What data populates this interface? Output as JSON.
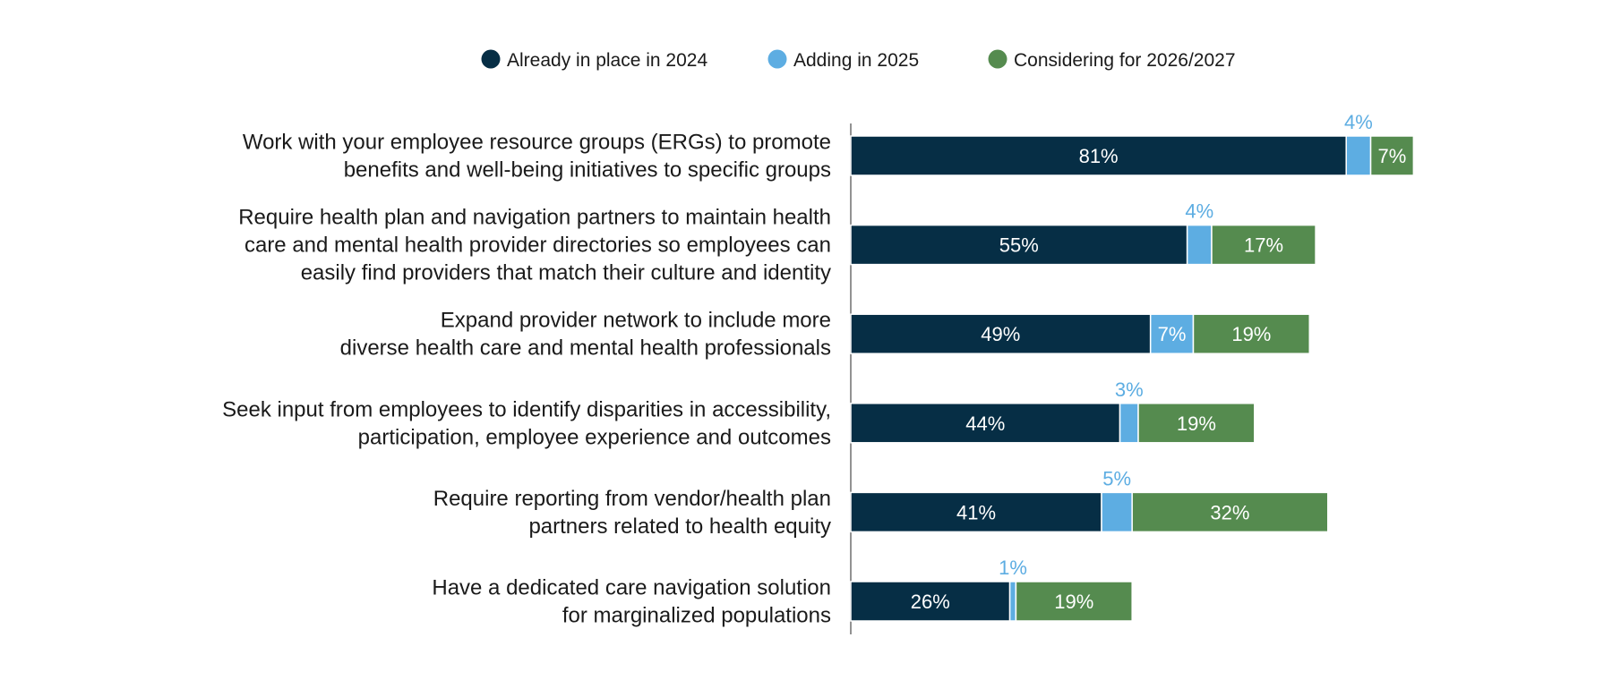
{
  "chart_data": {
    "type": "bar",
    "orientation": "horizontal",
    "stacked": true,
    "title": "",
    "xlabel": "",
    "ylabel": "",
    "xlim": [
      0,
      100
    ],
    "grid": false,
    "legend_position": "top-center",
    "categories": [
      [
        "Work with your employee resource groups (ERGs) to promote",
        "benefits and well-being initiatives to specific groups"
      ],
      [
        "Require health plan and navigation partners to maintain health",
        "care and mental health provider directories so employees can",
        "easily find providers that match their culture and identity"
      ],
      [
        "Expand provider network to include more",
        "diverse health care and mental health professionals"
      ],
      [
        "Seek input from employees to identify disparities in accessibility,",
        "participation, employee experience and outcomes"
      ],
      [
        "Require reporting from vendor/health plan",
        "partners related to health equity"
      ],
      [
        "Have a dedicated care navigation solution",
        "for marginalized populations"
      ]
    ],
    "series": [
      {
        "name": "Already in place in 2024",
        "color": "#062e45",
        "values": [
          81,
          55,
          49,
          44,
          41,
          26
        ]
      },
      {
        "name": "Adding in 2025",
        "color": "#5dade2",
        "values": [
          4,
          4,
          7,
          3,
          5,
          1
        ]
      },
      {
        "name": "Considering for 2026/2027",
        "color": "#558b4f",
        "values": [
          7,
          17,
          19,
          19,
          32,
          19
        ]
      }
    ],
    "value_suffix": "%"
  }
}
